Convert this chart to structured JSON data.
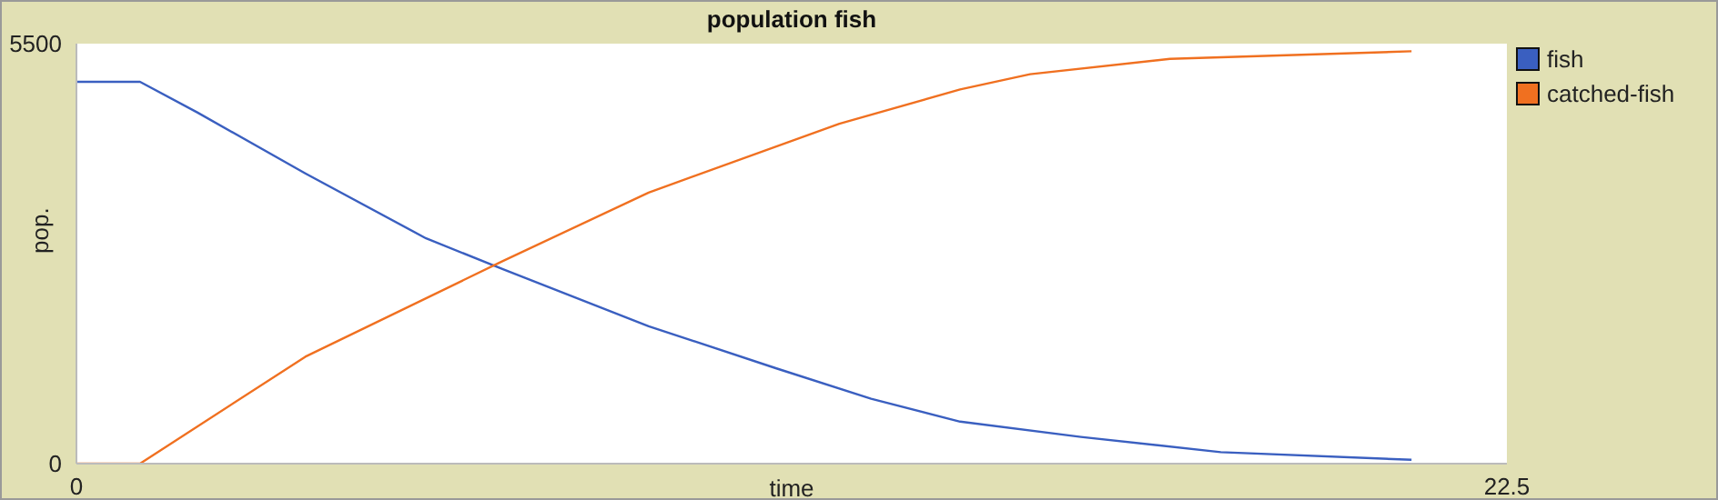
{
  "chart_data": {
    "type": "line",
    "title": "population fish",
    "xlabel": "time",
    "ylabel": "pop.",
    "xlim": [
      0,
      22.5
    ],
    "xticks": [
      0,
      22.5
    ],
    "ylim": [
      0,
      5500
    ],
    "yticks": [
      0,
      5500
    ],
    "legend": "top right",
    "marker": "none",
    "line_style": "solid",
    "series": [
      {
        "name": "fish",
        "color": "#3a5fc0",
        "x": [
          0,
          1,
          1.9,
          3.6,
          5.5,
          6.7,
          9,
          11,
          12.5,
          13.9,
          15.8,
          18,
          21
        ],
        "values": [
          5000,
          5000,
          4600,
          3800,
          2950,
          2550,
          1800,
          1250,
          850,
          550,
          350,
          150,
          50
        ]
      },
      {
        "name": "catched-fish",
        "color": "#f07020",
        "x": [
          0,
          1,
          3.6,
          6.7,
          9,
          12,
          13.9,
          15,
          17.2,
          21
        ],
        "values": [
          0,
          0,
          1400,
          2650,
          3550,
          4450,
          4900,
          5100,
          5300,
          5400
        ]
      }
    ]
  }
}
